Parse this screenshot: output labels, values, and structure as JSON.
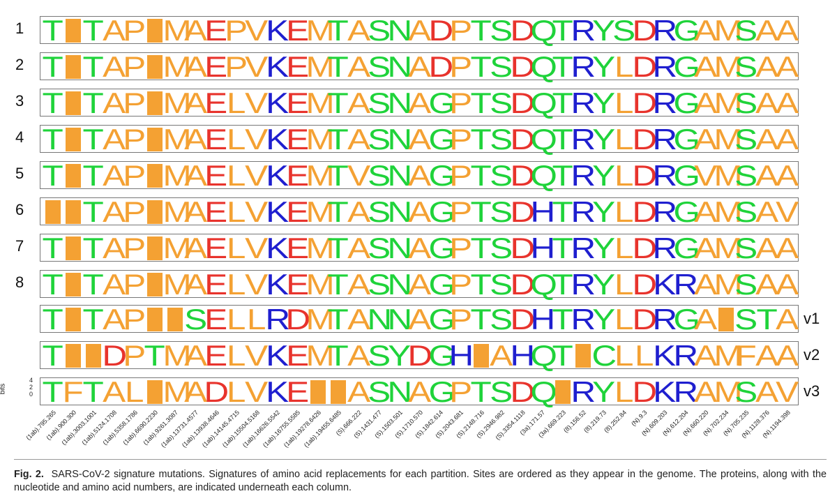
{
  "figure_label": "Fig. 2.",
  "caption_text": "SARS-CoV-2 signature mutations. Signatures of amino acid replacements for each partition. Sites are ordered as they appear in the genome. The proteins, along with the nucleotide and amino acid numbers, are indicated underneath each column.",
  "bits_axis": {
    "label": "bits",
    "ticks": [
      "4",
      "2",
      "0"
    ]
  },
  "colors": {
    "green": "#1fd33a",
    "orange": "#f4a133",
    "blue": "#1f1fcf",
    "red": "#e8332c"
  },
  "rows": [
    {
      "label": "1",
      "suffix": "",
      "sequence": "T#TAP#MAEPVKEMTASNADPTSDQTRYSDRGAMSAA"
    },
    {
      "label": "2",
      "suffix": "",
      "sequence": "T#TAP#MAEPVKEMTASNADPTSDQTRYLDRGAMSAA"
    },
    {
      "label": "3",
      "suffix": "",
      "sequence": "T#TAP#MAELVKEMTASNAGPTSDQTRYLDRGAMSAA"
    },
    {
      "label": "4",
      "suffix": "",
      "sequence": "T#TAP#MAELVKEMTASNAGPTSDQTRYLDRGAMSAA"
    },
    {
      "label": "5",
      "suffix": "",
      "sequence": "T#TAP#MAELVKEMTVSNAGPTSDQTRYLDRGVMSAA"
    },
    {
      "label": "6",
      "suffix": "",
      "sequence": "##TAP#MAELVKEMTASNAGPTSDHTRYLDRGAMSAV"
    },
    {
      "label": "7",
      "suffix": "",
      "sequence": "T#TAP#MAELVKEMTASNAGPTSDHTRYLDRGAMSAA"
    },
    {
      "label": "8",
      "suffix": "",
      "sequence": "T#TAP#MAELVKEMTASNAGPTSDQTRYLDKRAMSAA"
    },
    {
      "label": "",
      "suffix": "v1",
      "sequence": "T#TAP##SELLRDMTANNAGPTSDHTRYLDRGA#STA"
    },
    {
      "label": "",
      "suffix": "v2",
      "sequence": "T##DPTMAELVKEMTASYDGH#AHQT#CLLKRAMFAA"
    },
    {
      "label": "",
      "suffix": "v3",
      "sequence": "TFTAL#MADLVKE##ASNAGPTSDQ#RYLDKRAMSAV"
    }
  ],
  "sites": [
    "(1ab).795.265",
    "(1ab).900.300",
    "(1ab).3003.1001",
    "(1ab).5124.1708",
    "(1ab).5358.1786",
    "(1ab).6690.2230",
    "(1ab).9261.3087",
    "(1ab).13731.4577",
    "(1ab).13938.4646",
    "(1ab).14145.4715",
    "(1ab).15504.5168",
    "(1ab).16626.5542",
    "(1ab).16755.5585",
    "(1ab).19278.6426",
    "(1ab).19455.6485",
    "(S).666.222",
    "(S).1431.477",
    "(S).1503.501",
    "(S).1710.570",
    "(S).1842.614",
    "(S).2043.681",
    "(S).2148.716",
    "(S).2946.982",
    "(S).3354.1118",
    "(3a).171.57",
    "(3a).669.223",
    "(8).156.52",
    "(8).219.73",
    "(8).252.84",
    "(N).9.3",
    "(N).609.203",
    "(N).612.204",
    "(N).660.220",
    "(N).702.234",
    "(N).705.235",
    "(N).1128.376",
    "(N).1194.398"
  ]
}
